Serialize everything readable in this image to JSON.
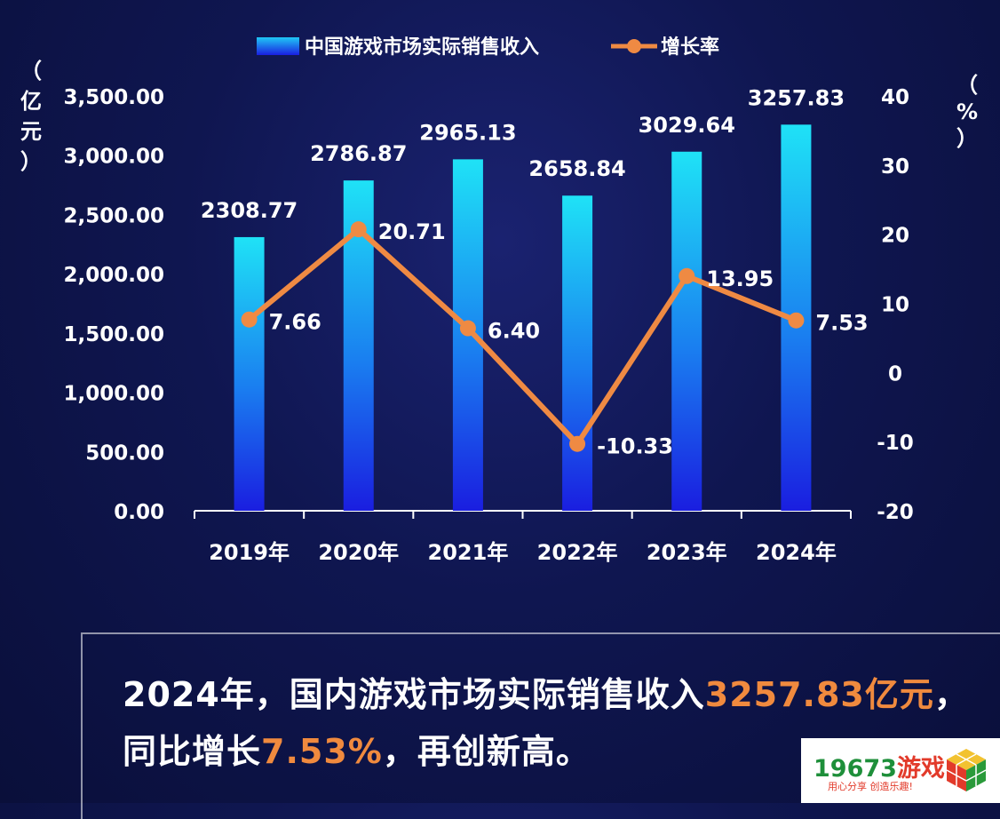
{
  "chart_data": {
    "type": "bar+line",
    "categories": [
      "2019年",
      "2020年",
      "2021年",
      "2022年",
      "2023年",
      "2024年"
    ],
    "series": [
      {
        "name": "中国游戏市场实际销售收入",
        "type": "bar",
        "axis": "left",
        "values": [
          2308.77,
          2786.87,
          2965.13,
          2658.84,
          3029.64,
          3257.83
        ],
        "labels": [
          "2308.77",
          "2786.87",
          "2965.13",
          "2658.84",
          "3029.64",
          "3257.83"
        ]
      },
      {
        "name": "增长率",
        "type": "line",
        "axis": "right",
        "values": [
          7.66,
          20.71,
          6.4,
          -10.33,
          13.95,
          7.53
        ],
        "labels": [
          "7.66",
          "20.71",
          "6.40",
          "-10.33",
          "13.95",
          "7.53"
        ]
      }
    ],
    "y_left": {
      "label": "（亿元）",
      "ylim": [
        0,
        3500
      ],
      "ticks": [
        "0.00",
        "500.00",
        "1,000.00",
        "1,500.00",
        "2,000.00",
        "2,500.00",
        "3,000.00",
        "3,500.00"
      ]
    },
    "y_right": {
      "label": "（%）",
      "ylim": [
        -20,
        40
      ],
      "ticks": [
        "-20",
        "-10",
        "0",
        "10",
        "20",
        "30",
        "40"
      ]
    },
    "legend_position": "top-center",
    "grid": false,
    "colors": {
      "bar_top": "#1fe2f6",
      "bar_bottom": "#1a1ee0",
      "line": "#ef8a43",
      "text": "#ffffff"
    }
  },
  "summary": {
    "line1_prefix": "2024年，国内游戏市场实际销售收入",
    "line1_highlight": "3257.83亿元",
    "line1_suffix": "，",
    "line2_prefix": "同比增长",
    "line2_highlight": "7.53%",
    "line2_suffix": "，再创新高。",
    "highlight_color": "#f08a3e"
  },
  "logo": {
    "number": "19673",
    "name": "游戏",
    "slogan": "用心分享 创造乐趣!"
  }
}
